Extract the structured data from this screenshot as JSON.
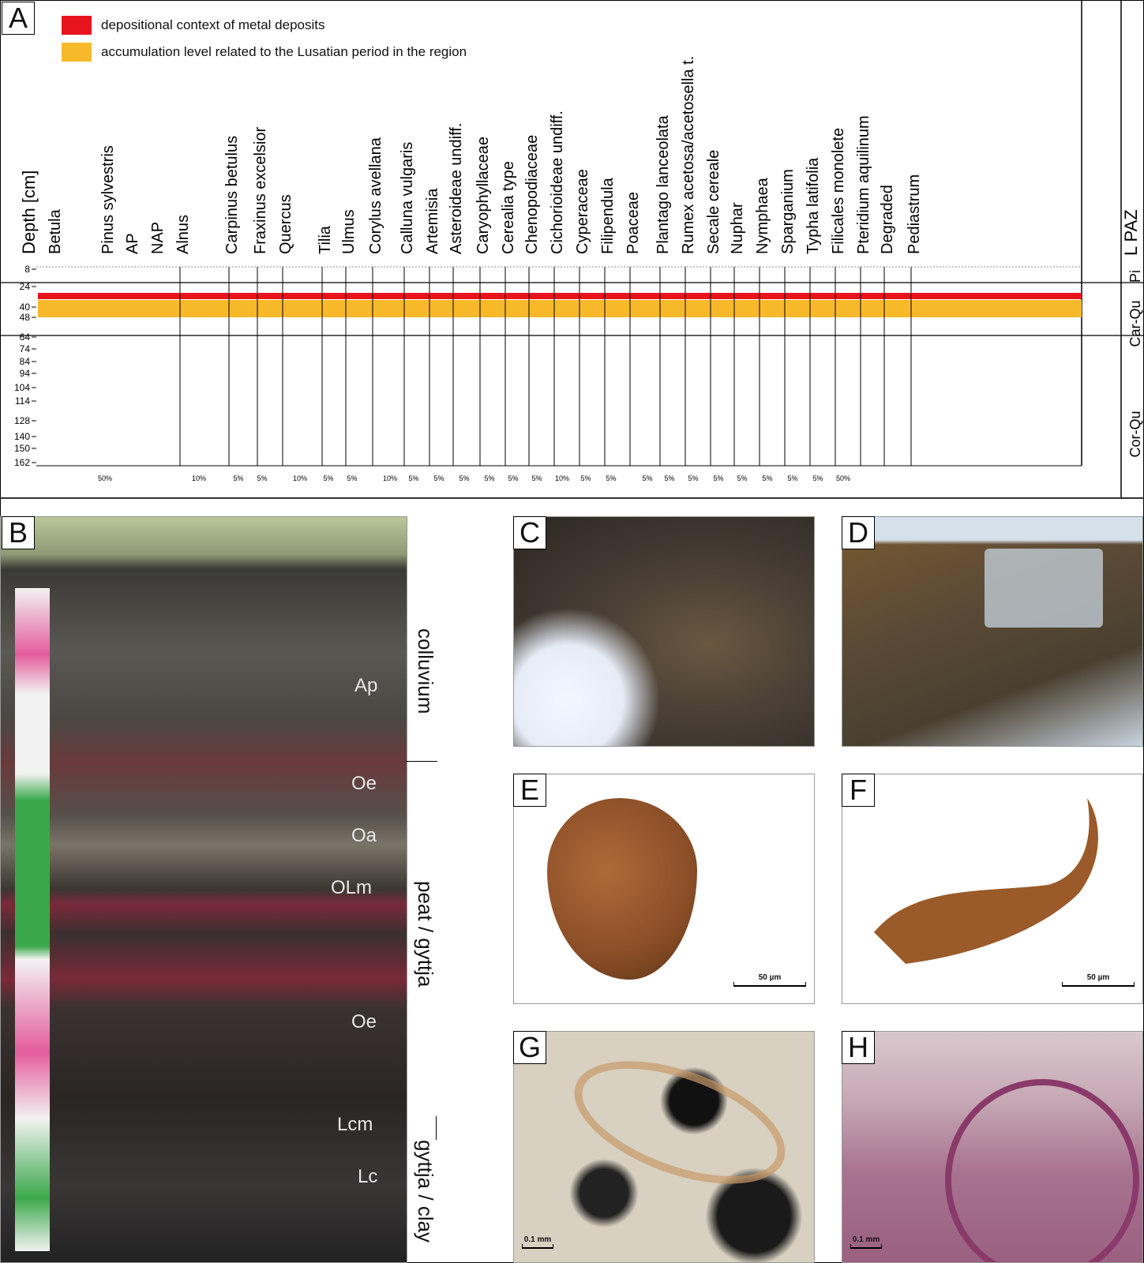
{
  "panel_labels": {
    "a": "A",
    "b": "B",
    "c": "C",
    "d": "D",
    "e": "E",
    "f": "F",
    "g": "G",
    "h": "H"
  },
  "legend": [
    {
      "label": "depositional context of metal deposits",
      "color": "#e8141c"
    },
    {
      "label": "accumulation level related to the Lusatian period in the region",
      "color": "#f7b92a"
    }
  ],
  "diagram": {
    "depth_label": "Depth [cm]",
    "depths": [
      "8",
      "24",
      "40",
      "48",
      "64",
      "74",
      "84",
      "94",
      "104",
      "114",
      "128",
      "140",
      "150",
      "162"
    ],
    "taxa": [
      "Betula",
      "Pinus sylvestris",
      "AP",
      "NAP",
      "Alnus",
      "Carpinus betulus",
      "Fraxinus excelsior",
      "Quercus",
      "Tilia",
      "Ulmus",
      "Corylus avellana",
      "Calluna vulgaris",
      "Artemisia",
      "Asteroideae undiff.",
      "Caryophyllaceae",
      "Cerealia type",
      "Chenopodiaceae",
      "Cichorioideae undiff.",
      "Cyperaceae",
      "Filipendula",
      "Poaceae",
      "Plantago lanceolata",
      "Rumex acetosa/acetosella t.",
      "Secale cereale",
      "Nuphar",
      "Nymphaea",
      "Sparganium",
      "Typha latifolia",
      "Filicales monolete",
      "Pteridium aquilinum",
      "Degraded",
      "Pediastrum"
    ],
    "scale_labels": [
      "50%",
      "10%",
      "5%",
      "5%",
      "10%",
      "5%",
      "5%",
      "10%",
      "5%",
      "5%",
      "5%",
      "5%",
      "5%",
      "5%",
      "10%",
      "5%",
      "5%",
      "5%",
      "5%",
      "5%",
      "5%",
      "5%",
      "5%",
      "5%",
      "5%",
      "50%"
    ],
    "zone_header": "L PAZ",
    "zones": [
      "Pi",
      "Car-Qu",
      "Cor-Qu"
    ]
  },
  "profile": {
    "units": [
      "colluvium",
      "peat / gyttja",
      "gyttja / clay"
    ],
    "horizons": [
      "Ap",
      "Oe",
      "Oa",
      "OLm",
      "Oe",
      "Lcm",
      "Lc"
    ]
  },
  "scale_bars": {
    "e": "50 µm",
    "f": "50 µm",
    "g": "0.1 mm",
    "h": "0.1 mm"
  }
}
